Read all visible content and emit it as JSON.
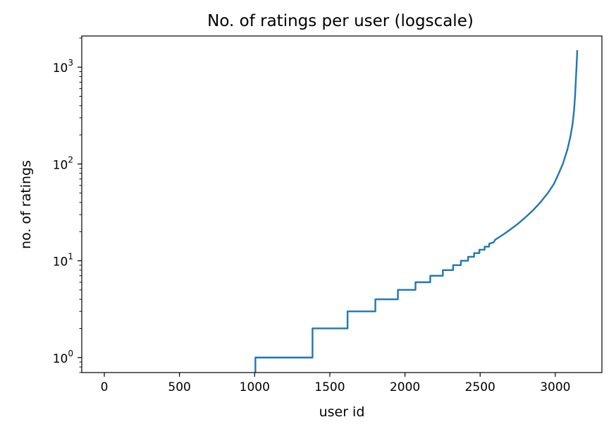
{
  "chart_data": {
    "type": "line",
    "title": "No. of ratings per user (logscale)",
    "xlabel": "user id",
    "ylabel": "no. of ratings",
    "xlim": [
      -150,
      3310
    ],
    "ylim": [
      0.7,
      2100
    ],
    "yscale": "log",
    "grid": false,
    "x_ticks": [
      0,
      500,
      1000,
      1500,
      2000,
      2500,
      3000
    ],
    "x_tick_labels": [
      "0",
      "500",
      "1000",
      "1500",
      "2000",
      "2500",
      "3000"
    ],
    "y_ticks": [
      1,
      10,
      100,
      1000
    ],
    "y_tick_labels": [
      {
        "base": "10",
        "exp": "0"
      },
      {
        "base": "10",
        "exp": "1"
      },
      {
        "base": "10",
        "exp": "2"
      },
      {
        "base": "10",
        "exp": "3"
      }
    ],
    "series": [
      {
        "color": "#1f77b4",
        "x": [
          1005,
          1005,
          1385,
          1385,
          1618,
          1618,
          1803,
          1803,
          1953,
          1953,
          2070,
          2070,
          2168,
          2168,
          2252,
          2252,
          2320,
          2320,
          2372,
          2372,
          2420,
          2420,
          2460,
          2460,
          2495,
          2495,
          2530,
          2530,
          2560,
          2560,
          2590,
          2600,
          2650,
          2700,
          2750,
          2800,
          2850,
          2900,
          2950,
          2990,
          3020,
          3050,
          3080,
          3100,
          3115,
          3125,
          3132,
          3137,
          3141,
          3144,
          3146
        ],
        "y": [
          0.7,
          1,
          1,
          2,
          2,
          3,
          3,
          4,
          4,
          5,
          5,
          6,
          6,
          7,
          7,
          8,
          8,
          9,
          9,
          10,
          10,
          11,
          11,
          12,
          12,
          13,
          13,
          14,
          14,
          15,
          15.5,
          16.5,
          18.5,
          21,
          24,
          28,
          33,
          40,
          50,
          62,
          78,
          100,
          140,
          190,
          260,
          360,
          520,
          750,
          1000,
          1250,
          1500
        ]
      }
    ]
  }
}
